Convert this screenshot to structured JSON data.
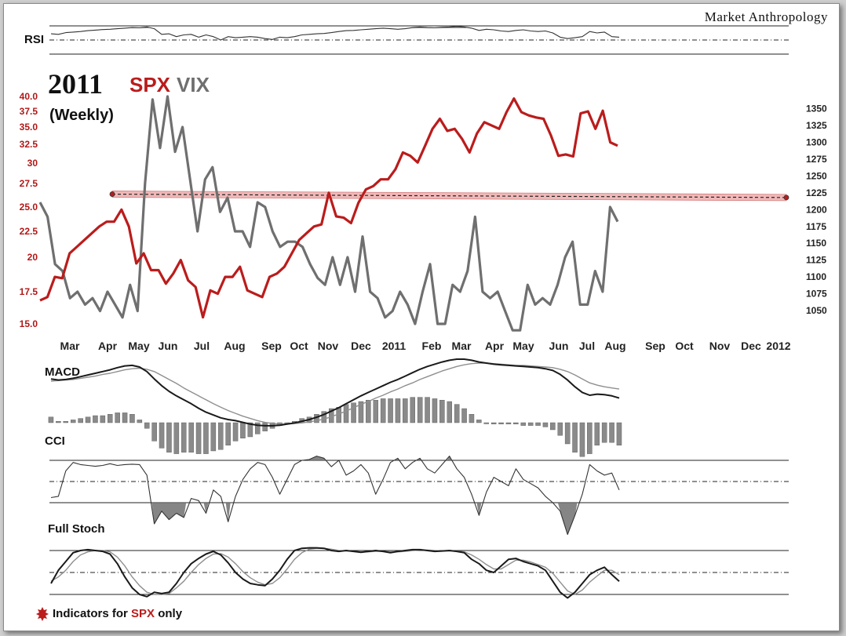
{
  "brand": "Market Anthropology",
  "colors": {
    "spx": "#bb1c1c",
    "vix": "#6f6f6f",
    "dark": "#1a1a1a",
    "light": "#8f8f8f"
  },
  "chart_data": {
    "type": "line",
    "title": {
      "year": "2011",
      "spx": "SPX",
      "vix": "VIX"
    },
    "subtitle": "(Weekly)",
    "footnote": {
      "prefix": "Indicators for ",
      "highlight": "SPX",
      "suffix": " only"
    },
    "x_labels": [
      "Mar",
      "Apr",
      "May",
      "Jun",
      "Jul",
      "Aug",
      "Sep",
      "Oct",
      "Nov",
      "Dec",
      "2011",
      "Feb",
      "Mar",
      "Apr",
      "May",
      "Jun",
      "Jul",
      "Aug",
      "Sep",
      "Oct",
      "Nov",
      "Dec",
      "2012"
    ],
    "left_axis": {
      "name": "VIX",
      "ticks": [
        "40.0",
        "37.5",
        "35.0",
        "32.5",
        "30",
        "27.5",
        "25.0",
        "22.5",
        "20",
        "17.5",
        "15.0"
      ]
    },
    "right_axis": {
      "name": "SPX",
      "ticks": [
        "1350",
        "1325",
        "1300",
        "1275",
        "1250",
        "1225",
        "1200",
        "1175",
        "1150",
        "1125",
        "1100",
        "1075",
        "1050"
      ]
    },
    "series": [
      {
        "name": "SPX",
        "axis": "right",
        "values": [
          1065,
          1070,
          1100,
          1098,
          1135,
          1145,
          1155,
          1165,
          1175,
          1182,
          1182,
          1200,
          1175,
          1120,
          1135,
          1110,
          1110,
          1090,
          1105,
          1125,
          1095,
          1085,
          1040,
          1080,
          1075,
          1100,
          1100,
          1115,
          1080,
          1075,
          1070,
          1100,
          1105,
          1115,
          1135,
          1155,
          1165,
          1175,
          1178,
          1225,
          1190,
          1188,
          1180,
          1210,
          1230,
          1235,
          1245,
          1245,
          1260,
          1285,
          1280,
          1270,
          1295,
          1320,
          1335,
          1317,
          1320,
          1305,
          1285,
          1313,
          1330,
          1325,
          1320,
          1345,
          1365,
          1345,
          1340,
          1337,
          1335,
          1310,
          1280,
          1282,
          1279,
          1343,
          1346,
          1320,
          1347,
          1300,
          1295
        ]
      },
      {
        "name": "VIX",
        "axis": "left",
        "values": [
          25.5,
          24.0,
          19.5,
          19.0,
          17.0,
          17.5,
          16.5,
          17.0,
          16.0,
          17.5,
          16.5,
          15.5,
          18.0,
          16.0,
          27.5,
          39.5,
          32.0,
          40.0,
          31.5,
          35.0,
          28.0,
          22.5,
          28.0,
          29.5,
          24.5,
          26.0,
          22.5,
          22.5,
          21.0,
          25.5,
          25.0,
          22.5,
          21.0,
          21.5,
          21.5,
          21.0,
          19.5,
          18.5,
          18.0,
          20.0,
          18.0,
          20.0,
          17.5,
          22.0,
          17.5,
          17.0,
          15.5,
          16.0,
          17.5,
          16.5,
          15.0,
          17.5,
          19.5,
          15.0,
          15.0,
          18.0,
          17.5,
          19.0,
          24.0,
          17.5,
          17.0,
          17.5,
          16.0,
          14.5,
          14.5,
          18.0,
          16.5,
          17.0,
          16.5,
          18.0,
          20.0,
          21.5,
          16.5,
          16.5,
          19.0,
          17.5,
          25.0,
          23.5
        ]
      },
      {
        "name": "MACD",
        "values": [
          0.72,
          0.7,
          0.71,
          0.73,
          0.76,
          0.79,
          0.82,
          0.85,
          0.88,
          0.92,
          0.95,
          0.96,
          0.93,
          0.85,
          0.72,
          0.6,
          0.5,
          0.42,
          0.35,
          0.28,
          0.2,
          0.13,
          0.08,
          0.03,
          0.0,
          -0.02,
          -0.05,
          -0.08,
          -0.1,
          -0.11,
          -0.11,
          -0.1,
          -0.08,
          -0.06,
          -0.03,
          0.0,
          0.04,
          0.09,
          0.15,
          0.21,
          0.28,
          0.35,
          0.42,
          0.48,
          0.54,
          0.6,
          0.66,
          0.71,
          0.77,
          0.83,
          0.89,
          0.94,
          0.98,
          1.02,
          1.05,
          1.07,
          1.07,
          1.05,
          1.02,
          1.0,
          0.98,
          0.97,
          0.96,
          0.95,
          0.94,
          0.93,
          0.92,
          0.9,
          0.87,
          0.8,
          0.7,
          0.58,
          0.48,
          0.43,
          0.45,
          0.44,
          0.42,
          0.38
        ]
      },
      {
        "name": "MACD signal",
        "values": [
          0.68,
          0.69,
          0.7,
          0.71,
          0.73,
          0.75,
          0.77,
          0.8,
          0.82,
          0.85,
          0.88,
          0.9,
          0.91,
          0.89,
          0.85,
          0.78,
          0.71,
          0.64,
          0.56,
          0.49,
          0.42,
          0.35,
          0.28,
          0.22,
          0.16,
          0.11,
          0.06,
          0.02,
          -0.02,
          -0.05,
          -0.07,
          -0.08,
          -0.08,
          -0.07,
          -0.06,
          -0.04,
          -0.02,
          0.01,
          0.05,
          0.1,
          0.15,
          0.21,
          0.27,
          0.32,
          0.38,
          0.43,
          0.49,
          0.54,
          0.6,
          0.65,
          0.71,
          0.76,
          0.81,
          0.86,
          0.9,
          0.94,
          0.97,
          0.99,
          1.0,
          1.0,
          0.99,
          0.98,
          0.97,
          0.96,
          0.96,
          0.95,
          0.94,
          0.93,
          0.92,
          0.89,
          0.85,
          0.79,
          0.72,
          0.65,
          0.61,
          0.58,
          0.56,
          0.54
        ]
      },
      {
        "name": "CCI",
        "values": [
          0.12,
          0.15,
          0.75,
          0.95,
          0.9,
          0.88,
          0.86,
          0.88,
          0.92,
          0.88,
          0.9,
          0.91,
          0.9,
          0.65,
          -0.5,
          -0.2,
          -0.4,
          -0.25,
          -0.35,
          0.1,
          0.05,
          -0.25,
          0.3,
          0.15,
          -0.45,
          0.15,
          0.55,
          0.8,
          0.95,
          0.9,
          0.6,
          0.2,
          0.55,
          0.9,
          1.0,
          1.02,
          1.1,
          1.05,
          0.85,
          1.0,
          0.65,
          0.75,
          0.9,
          0.7,
          0.2,
          0.55,
          0.95,
          1.05,
          0.8,
          0.95,
          1.05,
          0.8,
          0.7,
          0.9,
          1.1,
          0.8,
          0.6,
          0.2,
          -0.3,
          0.25,
          0.6,
          0.5,
          0.4,
          0.8,
          0.55,
          0.45,
          0.35,
          0.15,
          0.0,
          -0.2,
          -0.75,
          -0.3,
          0.2,
          0.9,
          0.75,
          0.65,
          0.7,
          0.3
        ]
      },
      {
        "name": "Full Stoch %K",
        "values": [
          0.25,
          0.55,
          0.75,
          0.95,
          1.0,
          1.02,
          1.0,
          0.98,
          0.92,
          0.7,
          0.4,
          0.15,
          0.0,
          -0.05,
          0.05,
          0.02,
          0.05,
          0.25,
          0.5,
          0.7,
          0.82,
          0.92,
          0.98,
          0.9,
          0.72,
          0.5,
          0.35,
          0.25,
          0.22,
          0.2,
          0.35,
          0.55,
          0.8,
          1.0,
          1.05,
          1.06,
          1.06,
          1.05,
          1.0,
          0.98,
          1.0,
          0.98,
          0.96,
          0.98,
          1.0,
          0.98,
          0.95,
          0.98,
          1.0,
          1.02,
          1.02,
          1.0,
          0.98,
          0.99,
          1.0,
          0.98,
          0.95,
          0.8,
          0.7,
          0.55,
          0.5,
          0.65,
          0.8,
          0.82,
          0.75,
          0.7,
          0.65,
          0.55,
          0.3,
          0.05,
          -0.08,
          0.05,
          0.25,
          0.45,
          0.55,
          0.62,
          0.45,
          0.3
        ]
      },
      {
        "name": "Full Stoch %D",
        "values": [
          0.3,
          0.4,
          0.55,
          0.75,
          0.9,
          0.97,
          1.0,
          1.0,
          0.97,
          0.85,
          0.65,
          0.4,
          0.2,
          0.05,
          0.0,
          0.0,
          0.02,
          0.15,
          0.3,
          0.5,
          0.68,
          0.82,
          0.92,
          0.93,
          0.85,
          0.7,
          0.52,
          0.38,
          0.28,
          0.22,
          0.25,
          0.38,
          0.58,
          0.8,
          0.95,
          1.03,
          1.05,
          1.05,
          1.03,
          1.0,
          0.99,
          0.98,
          0.97,
          0.97,
          0.98,
          0.98,
          0.97,
          0.97,
          0.98,
          1.0,
          1.01,
          1.01,
          1.0,
          0.99,
          0.99,
          0.99,
          0.97,
          0.9,
          0.8,
          0.68,
          0.58,
          0.58,
          0.68,
          0.78,
          0.78,
          0.74,
          0.68,
          0.62,
          0.48,
          0.28,
          0.08,
          0.0,
          0.1,
          0.28,
          0.42,
          0.55,
          0.55,
          0.45
        ]
      },
      {
        "name": "RSI",
        "values": [
          0.72,
          0.7,
          0.76,
          0.78,
          0.8,
          0.83,
          0.85,
          0.87,
          0.88,
          0.9,
          0.92,
          0.94,
          0.93,
          0.96,
          0.9,
          0.7,
          0.72,
          0.62,
          0.68,
          0.7,
          0.6,
          0.68,
          0.62,
          0.5,
          0.62,
          0.58,
          0.6,
          0.62,
          0.6,
          0.55,
          0.52,
          0.6,
          0.58,
          0.62,
          0.68,
          0.7,
          0.72,
          0.73,
          0.76,
          0.8,
          0.83,
          0.84,
          0.86,
          0.88,
          0.9,
          0.92,
          0.9,
          0.88,
          0.9,
          0.94,
          0.96,
          0.94,
          0.93,
          0.95,
          0.96,
          0.98,
          0.96,
          0.92,
          0.84,
          0.88,
          0.86,
          0.82,
          0.8,
          0.84,
          0.86,
          0.82,
          0.8,
          0.82,
          0.75,
          0.6,
          0.55,
          0.58,
          0.62,
          0.8,
          0.75,
          0.78,
          0.62,
          0.6
        ]
      },
      {
        "name": "Resistance",
        "axis": "right",
        "values": [
          1223,
          1218
        ]
      }
    ]
  }
}
